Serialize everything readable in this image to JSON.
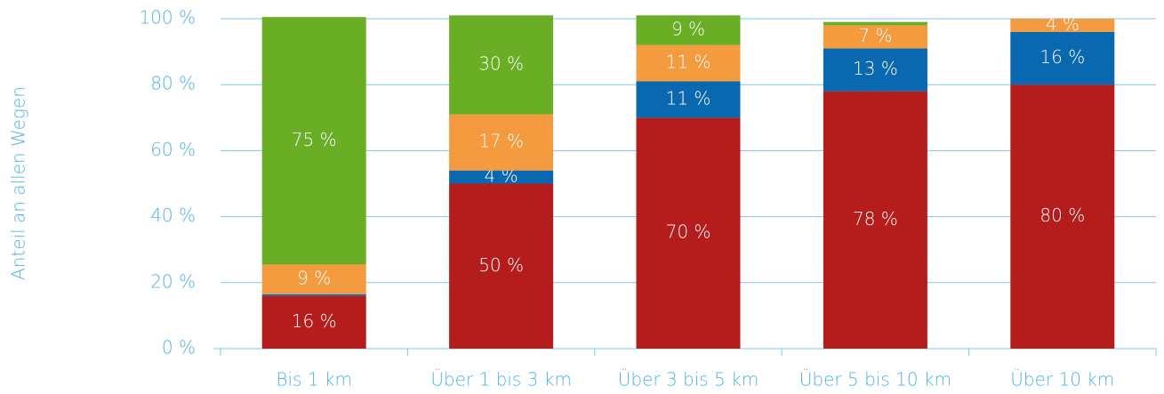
{
  "chart_data": {
    "type": "stacked_bar",
    "ylabel": "Anteil an allen Wegen",
    "categories": [
      "Bis 1 km",
      "Über 1 bis 3 km",
      "Über 3 bis 5 km",
      "Über 5 bis 10 km",
      "Über 10 km"
    ],
    "series": [
      {
        "color": "#b51c1c",
        "values": [
          16,
          50,
          70,
          78,
          80
        ],
        "value_labels": [
          "16 %",
          "50 %",
          "70 %",
          "78 %",
          "80 %"
        ]
      },
      {
        "color": "#0a68b0",
        "values": [
          0.5,
          4,
          11,
          13,
          16
        ],
        "value_labels": [
          null,
          "4 %",
          "11 %",
          "13 %",
          "16 %"
        ]
      },
      {
        "color": "#f49b40",
        "values": [
          9,
          17,
          11,
          7,
          4
        ],
        "value_labels": [
          "9 %",
          "17 %",
          "11 %",
          "7 %",
          "4 %"
        ]
      },
      {
        "color": "#6aae25",
        "values": [
          75,
          30,
          9,
          1,
          0
        ],
        "value_labels": [
          "75 %",
          "30 %",
          "9 %",
          null,
          null
        ]
      }
    ],
    "ylim": [
      0,
      100
    ],
    "yticks": [
      {
        "value": 0,
        "label": "0 %"
      },
      {
        "value": 20,
        "label": "20 %"
      },
      {
        "value": 40,
        "label": "40 %"
      },
      {
        "value": 60,
        "label": "60 %"
      },
      {
        "value": 80,
        "label": "80 %"
      },
      {
        "value": 100,
        "label": "100 %"
      }
    ],
    "grid": true
  }
}
